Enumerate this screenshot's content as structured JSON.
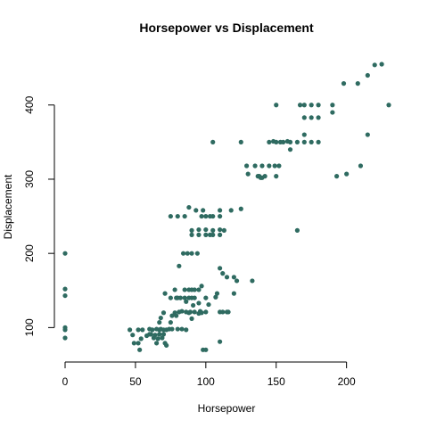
{
  "chart_data": {
    "type": "scatter",
    "title": "Horsepower vs Displacement",
    "xlabel": "Horsepower",
    "ylabel": "Displacement",
    "xlim": [
      0,
      230
    ],
    "ylim": [
      68,
      455
    ],
    "x_ticks": [
      0,
      50,
      100,
      150,
      200
    ],
    "y_ticks": [
      100,
      200,
      300,
      400
    ],
    "grid": false,
    "legend": "none",
    "point_color": "#2f6b61",
    "points": [
      {
        "x": 0,
        "y": 200
      },
      {
        "x": 0,
        "y": 152
      },
      {
        "x": 0,
        "y": 143
      },
      {
        "x": 0,
        "y": 100
      },
      {
        "x": 0,
        "y": 97
      },
      {
        "x": 0,
        "y": 86
      },
      {
        "x": 46,
        "y": 97
      },
      {
        "x": 48,
        "y": 90
      },
      {
        "x": 49,
        "y": 79
      },
      {
        "x": 52,
        "y": 97
      },
      {
        "x": 52,
        "y": 79
      },
      {
        "x": 53,
        "y": 70
      },
      {
        "x": 54,
        "y": 85
      },
      {
        "x": 55,
        "y": 97
      },
      {
        "x": 58,
        "y": 89
      },
      {
        "x": 60,
        "y": 91
      },
      {
        "x": 60,
        "y": 98
      },
      {
        "x": 61,
        "y": 91
      },
      {
        "x": 62,
        "y": 97
      },
      {
        "x": 63,
        "y": 86
      },
      {
        "x": 64,
        "y": 90
      },
      {
        "x": 65,
        "y": 98
      },
      {
        "x": 65,
        "y": 79
      },
      {
        "x": 66,
        "y": 85
      },
      {
        "x": 67,
        "y": 91
      },
      {
        "x": 67,
        "y": 97
      },
      {
        "x": 67,
        "y": 107
      },
      {
        "x": 68,
        "y": 98
      },
      {
        "x": 68,
        "y": 113
      },
      {
        "x": 69,
        "y": 86
      },
      {
        "x": 70,
        "y": 120
      },
      {
        "x": 70,
        "y": 97
      },
      {
        "x": 70,
        "y": 91
      },
      {
        "x": 71,
        "y": 79
      },
      {
        "x": 71,
        "y": 146
      },
      {
        "x": 72,
        "y": 97
      },
      {
        "x": 72,
        "y": 76
      },
      {
        "x": 74,
        "y": 98
      },
      {
        "x": 75,
        "y": 107
      },
      {
        "x": 75,
        "y": 140
      },
      {
        "x": 75,
        "y": 250
      },
      {
        "x": 76,
        "y": 116
      },
      {
        "x": 76,
        "y": 98
      },
      {
        "x": 78,
        "y": 151
      },
      {
        "x": 78,
        "y": 120
      },
      {
        "x": 79,
        "y": 140
      },
      {
        "x": 79,
        "y": 116
      },
      {
        "x": 80,
        "y": 140
      },
      {
        "x": 80,
        "y": 98
      },
      {
        "x": 80,
        "y": 250
      },
      {
        "x": 81,
        "y": 121
      },
      {
        "x": 81,
        "y": 183
      },
      {
        "x": 82,
        "y": 140
      },
      {
        "x": 83,
        "y": 98
      },
      {
        "x": 83,
        "y": 122
      },
      {
        "x": 84,
        "y": 200
      },
      {
        "x": 85,
        "y": 151
      },
      {
        "x": 85,
        "y": 140
      },
      {
        "x": 85,
        "y": 250
      },
      {
        "x": 86,
        "y": 121
      },
      {
        "x": 86,
        "y": 97
      },
      {
        "x": 86,
        "y": 135
      },
      {
        "x": 87,
        "y": 200
      },
      {
        "x": 88,
        "y": 140
      },
      {
        "x": 88,
        "y": 151
      },
      {
        "x": 88,
        "y": 262
      },
      {
        "x": 88,
        "y": 120
      },
      {
        "x": 89,
        "y": 121
      },
      {
        "x": 90,
        "y": 151
      },
      {
        "x": 90,
        "y": 140
      },
      {
        "x": 90,
        "y": 225
      },
      {
        "x": 90,
        "y": 231
      },
      {
        "x": 90,
        "y": 112
      },
      {
        "x": 90,
        "y": 200
      },
      {
        "x": 91,
        "y": 130
      },
      {
        "x": 92,
        "y": 140
      },
      {
        "x": 92,
        "y": 151
      },
      {
        "x": 92,
        "y": 121
      },
      {
        "x": 93,
        "y": 258
      },
      {
        "x": 94,
        "y": 200
      },
      {
        "x": 95,
        "y": 151
      },
      {
        "x": 95,
        "y": 225
      },
      {
        "x": 95,
        "y": 232
      },
      {
        "x": 95,
        "y": 119
      },
      {
        "x": 95,
        "y": 133
      },
      {
        "x": 96,
        "y": 122
      },
      {
        "x": 97,
        "y": 120
      },
      {
        "x": 97,
        "y": 250
      },
      {
        "x": 97,
        "y": 156
      },
      {
        "x": 98,
        "y": 258
      },
      {
        "x": 98,
        "y": 70
      },
      {
        "x": 100,
        "y": 225
      },
      {
        "x": 100,
        "y": 250
      },
      {
        "x": 100,
        "y": 232
      },
      {
        "x": 100,
        "y": 140
      },
      {
        "x": 100,
        "y": 121
      },
      {
        "x": 100,
        "y": 70
      },
      {
        "x": 102,
        "y": 131
      },
      {
        "x": 103,
        "y": 250
      },
      {
        "x": 103,
        "y": 225
      },
      {
        "x": 105,
        "y": 350
      },
      {
        "x": 105,
        "y": 231
      },
      {
        "x": 105,
        "y": 225
      },
      {
        "x": 105,
        "y": 250
      },
      {
        "x": 107,
        "y": 141
      },
      {
        "x": 108,
        "y": 146
      },
      {
        "x": 110,
        "y": 225
      },
      {
        "x": 110,
        "y": 250
      },
      {
        "x": 110,
        "y": 258
      },
      {
        "x": 110,
        "y": 180
      },
      {
        "x": 110,
        "y": 121
      },
      {
        "x": 110,
        "y": 232
      },
      {
        "x": 110,
        "y": 81
      },
      {
        "x": 112,
        "y": 121
      },
      {
        "x": 112,
        "y": 173
      },
      {
        "x": 113,
        "y": 231
      },
      {
        "x": 115,
        "y": 168
      },
      {
        "x": 115,
        "y": 121
      },
      {
        "x": 116,
        "y": 121
      },
      {
        "x": 118,
        "y": 258
      },
      {
        "x": 120,
        "y": 168
      },
      {
        "x": 120,
        "y": 146
      },
      {
        "x": 122,
        "y": 163
      },
      {
        "x": 125,
        "y": 350
      },
      {
        "x": 125,
        "y": 260
      },
      {
        "x": 129,
        "y": 318
      },
      {
        "x": 130,
        "y": 307
      },
      {
        "x": 133,
        "y": 163
      },
      {
        "x": 135,
        "y": 318
      },
      {
        "x": 137,
        "y": 304
      },
      {
        "x": 138,
        "y": 304
      },
      {
        "x": 139,
        "y": 302
      },
      {
        "x": 140,
        "y": 302
      },
      {
        "x": 140,
        "y": 318
      },
      {
        "x": 142,
        "y": 304
      },
      {
        "x": 145,
        "y": 350
      },
      {
        "x": 145,
        "y": 318
      },
      {
        "x": 148,
        "y": 351
      },
      {
        "x": 149,
        "y": 318
      },
      {
        "x": 150,
        "y": 400
      },
      {
        "x": 150,
        "y": 350
      },
      {
        "x": 150,
        "y": 304
      },
      {
        "x": 152,
        "y": 318
      },
      {
        "x": 153,
        "y": 350
      },
      {
        "x": 155,
        "y": 350
      },
      {
        "x": 158,
        "y": 351
      },
      {
        "x": 160,
        "y": 350
      },
      {
        "x": 160,
        "y": 340
      },
      {
        "x": 165,
        "y": 350
      },
      {
        "x": 165,
        "y": 231
      },
      {
        "x": 167,
        "y": 400
      },
      {
        "x": 170,
        "y": 350
      },
      {
        "x": 170,
        "y": 360
      },
      {
        "x": 170,
        "y": 383
      },
      {
        "x": 170,
        "y": 400
      },
      {
        "x": 175,
        "y": 350
      },
      {
        "x": 175,
        "y": 383
      },
      {
        "x": 175,
        "y": 400
      },
      {
        "x": 180,
        "y": 350
      },
      {
        "x": 180,
        "y": 383
      },
      {
        "x": 180,
        "y": 400
      },
      {
        "x": 190,
        "y": 390
      },
      {
        "x": 190,
        "y": 400
      },
      {
        "x": 193,
        "y": 304
      },
      {
        "x": 198,
        "y": 429
      },
      {
        "x": 200,
        "y": 307
      },
      {
        "x": 208,
        "y": 429
      },
      {
        "x": 210,
        "y": 318
      },
      {
        "x": 215,
        "y": 360
      },
      {
        "x": 215,
        "y": 440
      },
      {
        "x": 220,
        "y": 454
      },
      {
        "x": 225,
        "y": 455
      },
      {
        "x": 230,
        "y": 400
      }
    ]
  }
}
